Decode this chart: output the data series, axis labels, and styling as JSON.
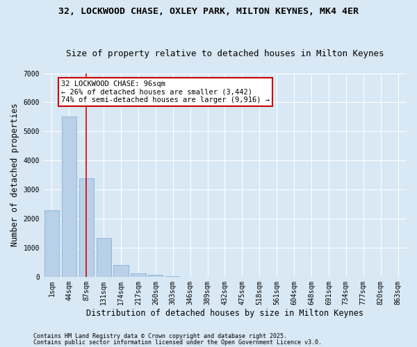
{
  "title1": "32, LOCKWOOD CHASE, OXLEY PARK, MILTON KEYNES, MK4 4ER",
  "title2": "Size of property relative to detached houses in Milton Keynes",
  "xlabel": "Distribution of detached houses by size in Milton Keynes",
  "ylabel": "Number of detached properties",
  "categories": [
    "1sqm",
    "44sqm",
    "87sqm",
    "131sqm",
    "174sqm",
    "217sqm",
    "260sqm",
    "303sqm",
    "346sqm",
    "389sqm",
    "432sqm",
    "475sqm",
    "518sqm",
    "561sqm",
    "604sqm",
    "648sqm",
    "691sqm",
    "734sqm",
    "777sqm",
    "820sqm",
    "863sqm"
  ],
  "values": [
    2280,
    5520,
    3380,
    1340,
    390,
    125,
    75,
    30,
    0,
    0,
    0,
    0,
    0,
    0,
    0,
    0,
    0,
    0,
    0,
    0,
    0
  ],
  "bar_color": "#b8d0e8",
  "bar_edge_color": "#7aaad0",
  "vline_x": 2.0,
  "vline_color": "#cc0000",
  "annotation_box_text": "32 LOCKWOOD CHASE: 96sqm\n← 26% of detached houses are smaller (3,442)\n74% of semi-detached houses are larger (9,916) →",
  "annotation_box_color": "#cc0000",
  "background_color": "#d8e8f4",
  "plot_bg_color": "#d8e8f4",
  "ylim": [
    0,
    7000
  ],
  "yticks": [
    0,
    1000,
    2000,
    3000,
    4000,
    5000,
    6000,
    7000
  ],
  "footer1": "Contains HM Land Registry data © Crown copyright and database right 2025.",
  "footer2": "Contains public sector information licensed under the Open Government Licence v3.0.",
  "title_fontsize": 9.5,
  "subtitle_fontsize": 9,
  "axis_label_fontsize": 8.5,
  "tick_fontsize": 7,
  "annotation_fontsize": 7.5,
  "footer_fontsize": 6
}
